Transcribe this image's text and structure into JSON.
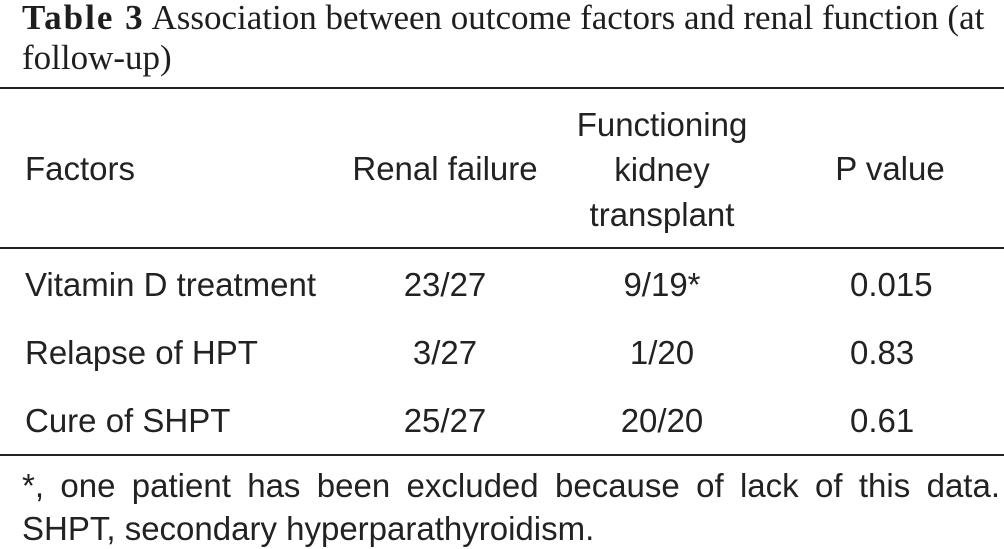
{
  "caption": {
    "label": "Table 3",
    "title_line1": "Association between outcome factors and renal function (at",
    "title_line2": "follow-up)"
  },
  "table": {
    "headers": [
      "Factors",
      "Renal failure",
      "Functioning kidney transplant",
      "P value"
    ],
    "rows": [
      [
        "Vitamin D treatment",
        "23/27",
        "9/19*",
        "0.015"
      ],
      [
        "Relapse of HPT",
        "3/27",
        "1/20",
        "0.83"
      ],
      [
        "Cure of SHPT",
        "25/27",
        "20/20",
        "0.61"
      ]
    ]
  },
  "footnotes": [
    "*, one patient has been excluded because of lack of this data.",
    "SHPT, secondary hyperparathyroidism."
  ],
  "colors": {
    "text": "#222222",
    "rules": "#222222",
    "background": "#ffffff"
  }
}
